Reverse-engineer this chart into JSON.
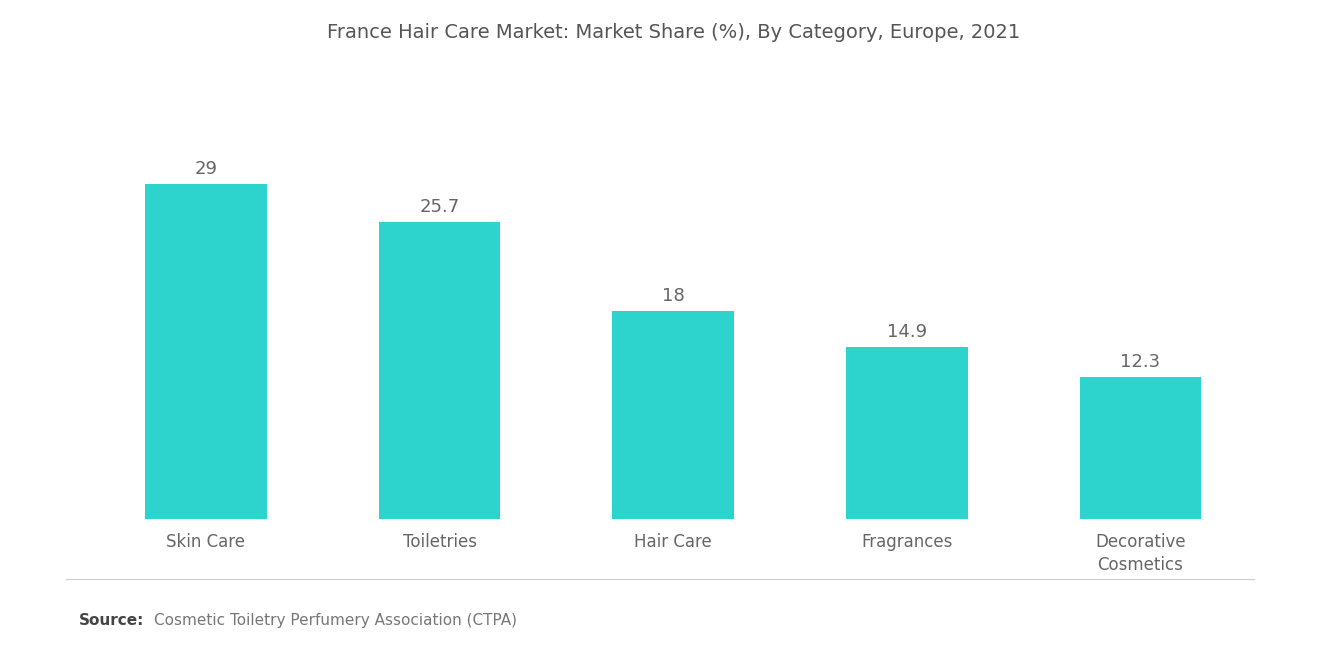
{
  "title": "France Hair Care Market: Market Share (%), By Category, Europe, 2021",
  "categories": [
    "Skin Care",
    "Toiletries",
    "Hair Care",
    "Fragrances",
    "Decorative\nCosmetics"
  ],
  "values": [
    29,
    25.7,
    18,
    14.9,
    12.3
  ],
  "value_labels": [
    "29",
    "25.7",
    "18",
    "14.9",
    "12.3"
  ],
  "bar_color": "#2DD4CE",
  "background_color": "#FFFFFF",
  "title_color": "#555555",
  "label_color": "#666666",
  "value_color": "#666666",
  "source_bold": "Source:",
  "source_text": "Cosmetic Toiletry Perfumery Association (CTPA)",
  "ylim": [
    0,
    38
  ],
  "bar_width": 0.52,
  "title_fontsize": 14,
  "tick_fontsize": 12,
  "value_fontsize": 13
}
